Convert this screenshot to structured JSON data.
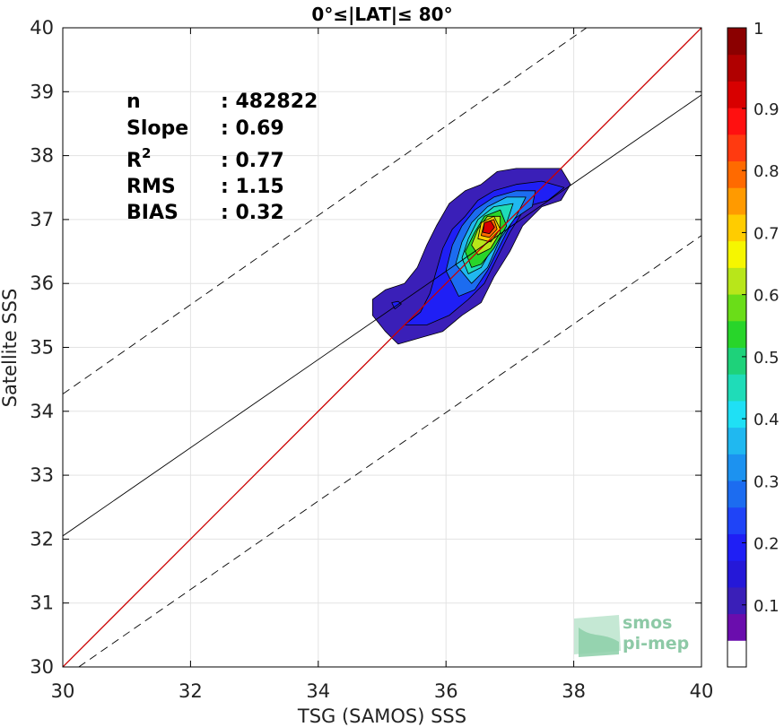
{
  "chart_data": {
    "type": "heatmap",
    "title": "0°≤|LAT|≤ 80°",
    "xlabel": "TSG (SAMOS) SSS",
    "ylabel": "Satellite SSS",
    "xlim": [
      30,
      40
    ],
    "ylim": [
      30,
      40
    ],
    "xticks": [
      "30",
      "32",
      "34",
      "36",
      "38",
      "40"
    ],
    "yticks": [
      "30",
      "31",
      "32",
      "33",
      "34",
      "35",
      "36",
      "37",
      "38",
      "39",
      "40"
    ],
    "grid": true,
    "stats": [
      {
        "label": "n",
        "value": ": 482822"
      },
      {
        "label": "Slope",
        "value": ": 0.69"
      },
      {
        "label": "R",
        "sup": "2",
        "value": ": 0.77"
      },
      {
        "label": "RMS",
        "value": ": 1.15"
      },
      {
        "label": "BIAS",
        "value": ": 0.32"
      }
    ],
    "lines": [
      {
        "role": "identity",
        "color": "#cc0000",
        "dash": false,
        "from": [
          30,
          30
        ],
        "to": [
          40,
          40
        ]
      },
      {
        "role": "regression",
        "color": "#000000",
        "dash": false,
        "from": [
          30,
          32.05
        ],
        "to": [
          40,
          38.95
        ]
      },
      {
        "role": "upper-bound",
        "color": "#000000",
        "dash": true,
        "from": [
          30,
          34.27
        ],
        "to": [
          38.2,
          40
        ]
      },
      {
        "role": "lower-bound",
        "color": "#000000",
        "dash": true,
        "from": [
          30.25,
          30
        ],
        "to": [
          40,
          36.75
        ]
      }
    ],
    "density_contours": [
      {
        "level": 0.05,
        "fill": "#3a1fb8",
        "points": [
          [
            34.85,
            35.75
          ],
          [
            35.05,
            35.9
          ],
          [
            35.35,
            36.0
          ],
          [
            35.55,
            36.25
          ],
          [
            35.7,
            36.6
          ],
          [
            35.85,
            36.9
          ],
          [
            36.05,
            37.25
          ],
          [
            36.3,
            37.45
          ],
          [
            36.55,
            37.55
          ],
          [
            36.8,
            37.75
          ],
          [
            37.1,
            37.8
          ],
          [
            37.5,
            37.8
          ],
          [
            37.8,
            37.8
          ],
          [
            37.95,
            37.55
          ],
          [
            37.8,
            37.3
          ],
          [
            37.5,
            37.2
          ],
          [
            37.2,
            36.9
          ],
          [
            37.0,
            36.5
          ],
          [
            36.75,
            36.1
          ],
          [
            36.55,
            35.7
          ],
          [
            36.25,
            35.5
          ],
          [
            35.95,
            35.25
          ],
          [
            35.6,
            35.15
          ],
          [
            35.25,
            35.05
          ],
          [
            35.05,
            35.25
          ],
          [
            34.85,
            35.5
          ]
        ]
      },
      {
        "level": 0.1,
        "fill": "#1f1ff5",
        "points": [
          [
            35.35,
            35.35
          ],
          [
            35.6,
            35.55
          ],
          [
            35.75,
            35.85
          ],
          [
            35.85,
            36.2
          ],
          [
            35.95,
            36.55
          ],
          [
            36.1,
            36.85
          ],
          [
            36.3,
            37.05
          ],
          [
            36.5,
            37.3
          ],
          [
            36.75,
            37.45
          ],
          [
            37.1,
            37.55
          ],
          [
            37.5,
            37.6
          ],
          [
            37.85,
            37.5
          ],
          [
            37.6,
            37.3
          ],
          [
            37.25,
            37.2
          ],
          [
            37.0,
            36.8
          ],
          [
            36.8,
            36.4
          ],
          [
            36.6,
            36.0
          ],
          [
            36.35,
            35.75
          ],
          [
            36.05,
            35.5
          ],
          [
            35.7,
            35.35
          ]
        ]
      },
      {
        "level": 0.2,
        "fill": "#1c6cf0",
        "points": [
          [
            36.0,
            36.2
          ],
          [
            36.1,
            36.6
          ],
          [
            36.25,
            36.9
          ],
          [
            36.45,
            37.15
          ],
          [
            36.75,
            37.35
          ],
          [
            37.1,
            37.45
          ],
          [
            37.4,
            37.45
          ],
          [
            37.35,
            37.2
          ],
          [
            37.05,
            37.0
          ],
          [
            36.85,
            36.6
          ],
          [
            36.65,
            36.2
          ],
          [
            36.45,
            35.9
          ],
          [
            36.2,
            35.8
          ]
        ]
      },
      {
        "level": 0.3,
        "fill": "#20b8f0",
        "points": [
          [
            36.15,
            36.3
          ],
          [
            36.25,
            36.65
          ],
          [
            36.4,
            36.95
          ],
          [
            36.65,
            37.2
          ],
          [
            36.95,
            37.35
          ],
          [
            37.25,
            37.35
          ],
          [
            37.1,
            37.05
          ],
          [
            36.85,
            36.7
          ],
          [
            36.65,
            36.25
          ],
          [
            36.4,
            36.0
          ]
        ]
      },
      {
        "level": 0.4,
        "fill": "#1fdcb8",
        "points": [
          [
            36.25,
            36.4
          ],
          [
            36.35,
            36.7
          ],
          [
            36.5,
            37.0
          ],
          [
            36.75,
            37.2
          ],
          [
            37.05,
            37.25
          ],
          [
            36.95,
            36.95
          ],
          [
            36.75,
            36.6
          ],
          [
            36.55,
            36.25
          ],
          [
            36.35,
            36.15
          ]
        ]
      },
      {
        "level": 0.5,
        "fill": "#28d52a",
        "points": [
          [
            36.3,
            36.5
          ],
          [
            36.45,
            36.8
          ],
          [
            36.6,
            37.05
          ],
          [
            36.85,
            37.15
          ],
          [
            36.95,
            36.9
          ],
          [
            36.75,
            36.55
          ],
          [
            36.55,
            36.3
          ],
          [
            36.4,
            36.25
          ]
        ]
      },
      {
        "level": 0.6,
        "fill": "#b8e61a",
        "points": [
          [
            36.4,
            36.6
          ],
          [
            36.5,
            36.85
          ],
          [
            36.65,
            37.05
          ],
          [
            36.85,
            37.05
          ],
          [
            36.85,
            36.8
          ],
          [
            36.7,
            36.55
          ],
          [
            36.5,
            36.45
          ]
        ]
      },
      {
        "level": 0.7,
        "fill": "#ffcc00",
        "points": [
          [
            36.5,
            36.7
          ],
          [
            36.55,
            36.95
          ],
          [
            36.75,
            37.05
          ],
          [
            36.85,
            36.85
          ],
          [
            36.7,
            36.65
          ]
        ]
      },
      {
        "level": 0.8,
        "fill": "#ff6a00",
        "points": [
          [
            36.55,
            36.75
          ],
          [
            36.6,
            36.95
          ],
          [
            36.75,
            37.0
          ],
          [
            36.8,
            36.85
          ],
          [
            36.68,
            36.72
          ]
        ]
      },
      {
        "level": 0.95,
        "fill": "#d80000",
        "points": [
          [
            36.58,
            36.8
          ],
          [
            36.6,
            36.95
          ],
          [
            36.7,
            36.98
          ],
          [
            36.76,
            36.88
          ],
          [
            36.68,
            36.78
          ]
        ]
      },
      {
        "level": 0.1,
        "fill": "#1f1ff5",
        "points": [
          [
            35.2,
            35.6
          ],
          [
            35.3,
            35.68
          ],
          [
            35.25,
            35.72
          ],
          [
            35.15,
            35.7
          ]
        ]
      }
    ],
    "colorbar": {
      "ticks": [
        "0.1",
        "0.2",
        "0.3",
        "0.4",
        "0.5",
        "0.6",
        "0.7",
        "0.8",
        "0.9",
        "1"
      ],
      "tick_values": [
        0.1,
        0.2,
        0.3,
        0.4,
        0.5,
        0.6,
        0.7,
        0.8,
        0.9,
        1.0
      ],
      "colors": [
        "#ffffff",
        "#6a0dad",
        "#3a1fb8",
        "#2518d8",
        "#1f1ff5",
        "#1f44f7",
        "#1c6cf0",
        "#1c92f0",
        "#20b8f0",
        "#1fe0f5",
        "#1fdcb8",
        "#1ed27a",
        "#28d52a",
        "#6add18",
        "#b8e61a",
        "#f6f600",
        "#ffcc00",
        "#ff9a00",
        "#ff6a00",
        "#ff3a10",
        "#ff1010",
        "#d80000",
        "#b00000",
        "#8b0000"
      ]
    }
  },
  "logo": {
    "line1": "smos",
    "line2": "pi-mep"
  }
}
